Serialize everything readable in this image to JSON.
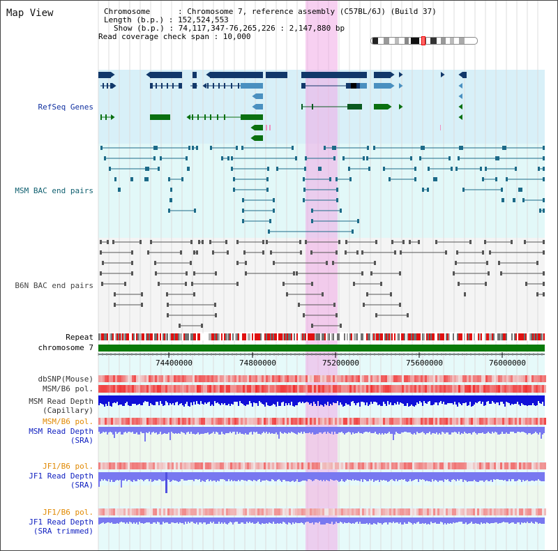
{
  "header": {
    "title": "Map View",
    "chromosome_line": "Chromosome      : Chromosome 7, reference assembly (C57BL/6J) (Build 37)",
    "length_line": "Length (b.p.) : 152,524,553",
    "show_line": "Show (b.p.) : 74,117,347-76,265,226 : 2,147,880 bp",
    "coverage_line": "Read coverage check span : 10,000"
  },
  "labels": {
    "refseq": "RefSeq Genes",
    "msm_bac": "MSM BAC end pairs",
    "b6n_bac": "B6N BAC end pairs",
    "repeat": "Repeat",
    "chromosome": "chromosome 7",
    "dbsnp": "dbSNP(Mouse)",
    "msm_b6_pol_1": "MSM/B6 pol.",
    "msm_read_cap_1": "MSM Read Depth",
    "msm_read_cap_2": "(Capillary)",
    "msm_b6_pol_2": "MSM/B6 pol.",
    "msm_read_sra_1": "MSM Read Depth",
    "msm_read_sra_2": "(SRA)",
    "jf1_b6_pol_1": "JF1/B6 pol.",
    "jf1_read_sra_1": "JF1 Read Depth",
    "jf1_read_sra_2": "(SRA)",
    "jf1_b6_pol_2": "JF1/B6 pol.",
    "jf1_read_trim_1": "JF1 Read Depth",
    "jf1_read_trim_2": "(SRA trimmed)"
  },
  "axis": {
    "ticks": [
      "74400000",
      "74800000",
      "75200000",
      "75600000",
      "76000000"
    ]
  },
  "colors": {
    "refseq_band": "#d8f0f8",
    "msm_band": "#e0f8f8",
    "b6n_band": "#f4f4f4",
    "lower_band": "#e6fafa",
    "highlight": "#f4c8f0",
    "gene_dark": "#12386a",
    "gene_light": "#4a90c0",
    "gene_green": "#0a7010",
    "chromosome_bar": "#0a7a0a",
    "depth_blue": "#1010d8",
    "depth_light": "#7878f0"
  }
}
